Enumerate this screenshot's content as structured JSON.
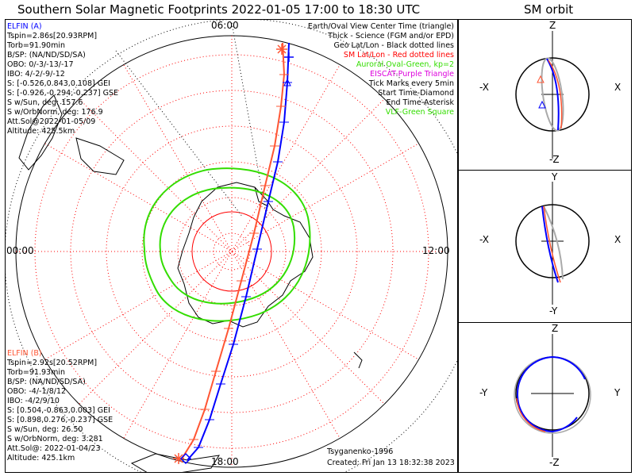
{
  "header": {
    "title": "Southern Solar Magnetic Footprints 2022-01-05 17:00 to 18:30 UTC",
    "orbit_title": "SM orbit"
  },
  "map": {
    "clock_labels": [
      "06:00",
      "00:00",
      "12:00",
      "18:00"
    ],
    "author": "Tsyganenko-1996",
    "created": "Created: Fri Jan 13 18:32:38 2023"
  },
  "legend": [
    {
      "text": "Earth/Oval View Center Time (triangle)",
      "color": "#000000"
    },
    {
      "text": "Thick - Science (FGM and/or EPD)",
      "color": "#000000"
    },
    {
      "text": "Geo Lat/Lon - Black dotted lines",
      "color": "#000000"
    },
    {
      "text": "SM Lat/Lon - Red dotted lines",
      "color": "#ff0000"
    },
    {
      "text": "Auroral Oval-Green, kp=2",
      "color": "#33dd00"
    },
    {
      "text": "EISCAT-Purple Triangle",
      "color": "#dd00dd"
    },
    {
      "text": "Tick Marks every 5min",
      "color": "#000000"
    },
    {
      "text": "Start Time-Diamond",
      "color": "#000000"
    },
    {
      "text": "End Time-Asterisk",
      "color": "#000000"
    },
    {
      "text": "VLF-Green Square",
      "color": "#33dd00"
    }
  ],
  "elfin_a": {
    "name": "ELFIN (A)",
    "color": "#0000ff",
    "lines": [
      "Tspin=2.86s[20.93RPM]",
      "Torb=91.90min",
      "B/SP: (NA/ND/SD/SA)",
      "OBO: 0/-3/-13/-17",
      "IBO: 4/-2/-9/-12",
      "S: [-0.526,0.843,0.108] GEI",
      "S: [-0.926,-0.294,-0.237] GSE",
      "S w/Sun, deg: 157.6",
      "S w/OrbNorm, deg: 176.9",
      "Att.Sol@2022-01-05/09",
      "Altitude: 425.5km"
    ]
  },
  "elfin_b": {
    "name": "ELFIN (B)",
    "color": "#ff0000",
    "lines": [
      "Tspin=2.92s[20.52RPM]",
      "Torb=91.93min",
      "B/SP: (NA/ND/SD/SA)",
      "OBO: -4/-1/8/12",
      "IBO: -4/2/9/10",
      "S: [0.504,-0.863,0.003] GEI",
      "S: [0.898,0.276,-0.237] GSE",
      "S w/Sun, deg: 26.50",
      "S w/OrbNorm, deg: 3.281",
      "Att.Sol@: 2022-01-04/23",
      "Altitude: 425.1km"
    ]
  },
  "orbit_panels": [
    {
      "top": "Z",
      "bottom": "-Z",
      "left": "-X",
      "right": "X"
    },
    {
      "top": "Y",
      "bottom": "-Y",
      "left": "-X",
      "right": "X"
    },
    {
      "top": "Z",
      "bottom": "-Z",
      "left": "-Y",
      "right": "Y"
    }
  ],
  "chart_data": {
    "type": "line",
    "projection": "south polar, SM magnetic local time",
    "series": [
      {
        "name": "ELFIN (A)",
        "color": "#0000ff"
      },
      {
        "name": "ELFIN (B)",
        "color": "#ff0000"
      }
    ],
    "auroral_oval_kp": 2,
    "tick_interval_min": 5
  }
}
